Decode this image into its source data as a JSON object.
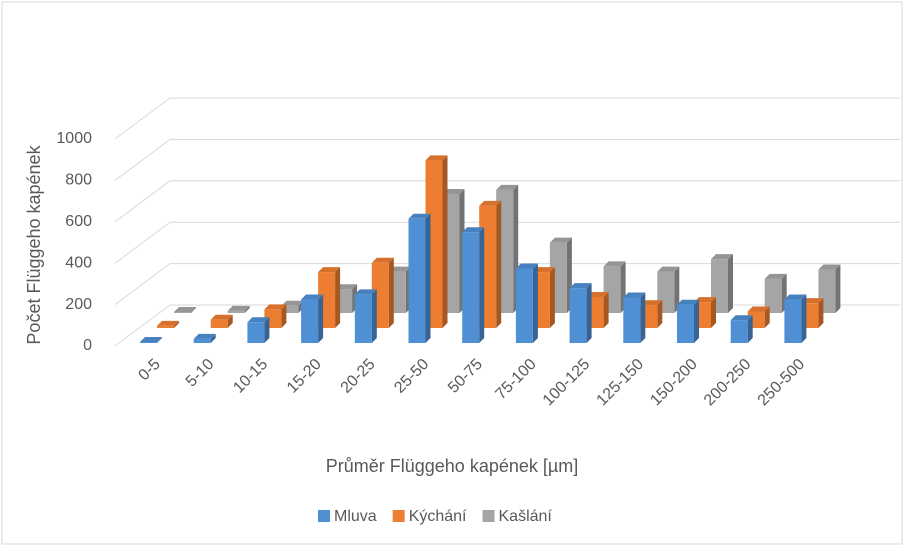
{
  "chart_data": {
    "type": "bar3d",
    "x_label": "Průměr Flüggeho kapének [µm]",
    "y_label": "Počet Flüggeho kapének",
    "categories": [
      "0-5",
      "5-10",
      "10-15",
      "15-20",
      "20-25",
      "25-50",
      "50-75",
      "75-100",
      "100-125",
      "125-150",
      "150-200",
      "200-250",
      "250-500"
    ],
    "series": [
      {
        "name": "Mluva",
        "color": "#4f8fd4",
        "values": [
          5,
          20,
          100,
          210,
          235,
          600,
          535,
          360,
          265,
          220,
          185,
          110,
          210
        ]
      },
      {
        "name": "Kýchání",
        "color": "#ed7d31",
        "values": [
          10,
          40,
          90,
          270,
          315,
          810,
          590,
          270,
          150,
          110,
          125,
          80,
          120
        ]
      },
      {
        "name": "Kašlání",
        "color": "#a5a5a5",
        "values": [
          5,
          10,
          35,
          115,
          200,
          575,
          595,
          340,
          225,
          200,
          260,
          165,
          210
        ]
      }
    ],
    "ylim": [
      0,
      1000
    ],
    "yticks": [
      0,
      200,
      400,
      600,
      800,
      1000
    ],
    "grid": true,
    "legend": "bottom"
  }
}
